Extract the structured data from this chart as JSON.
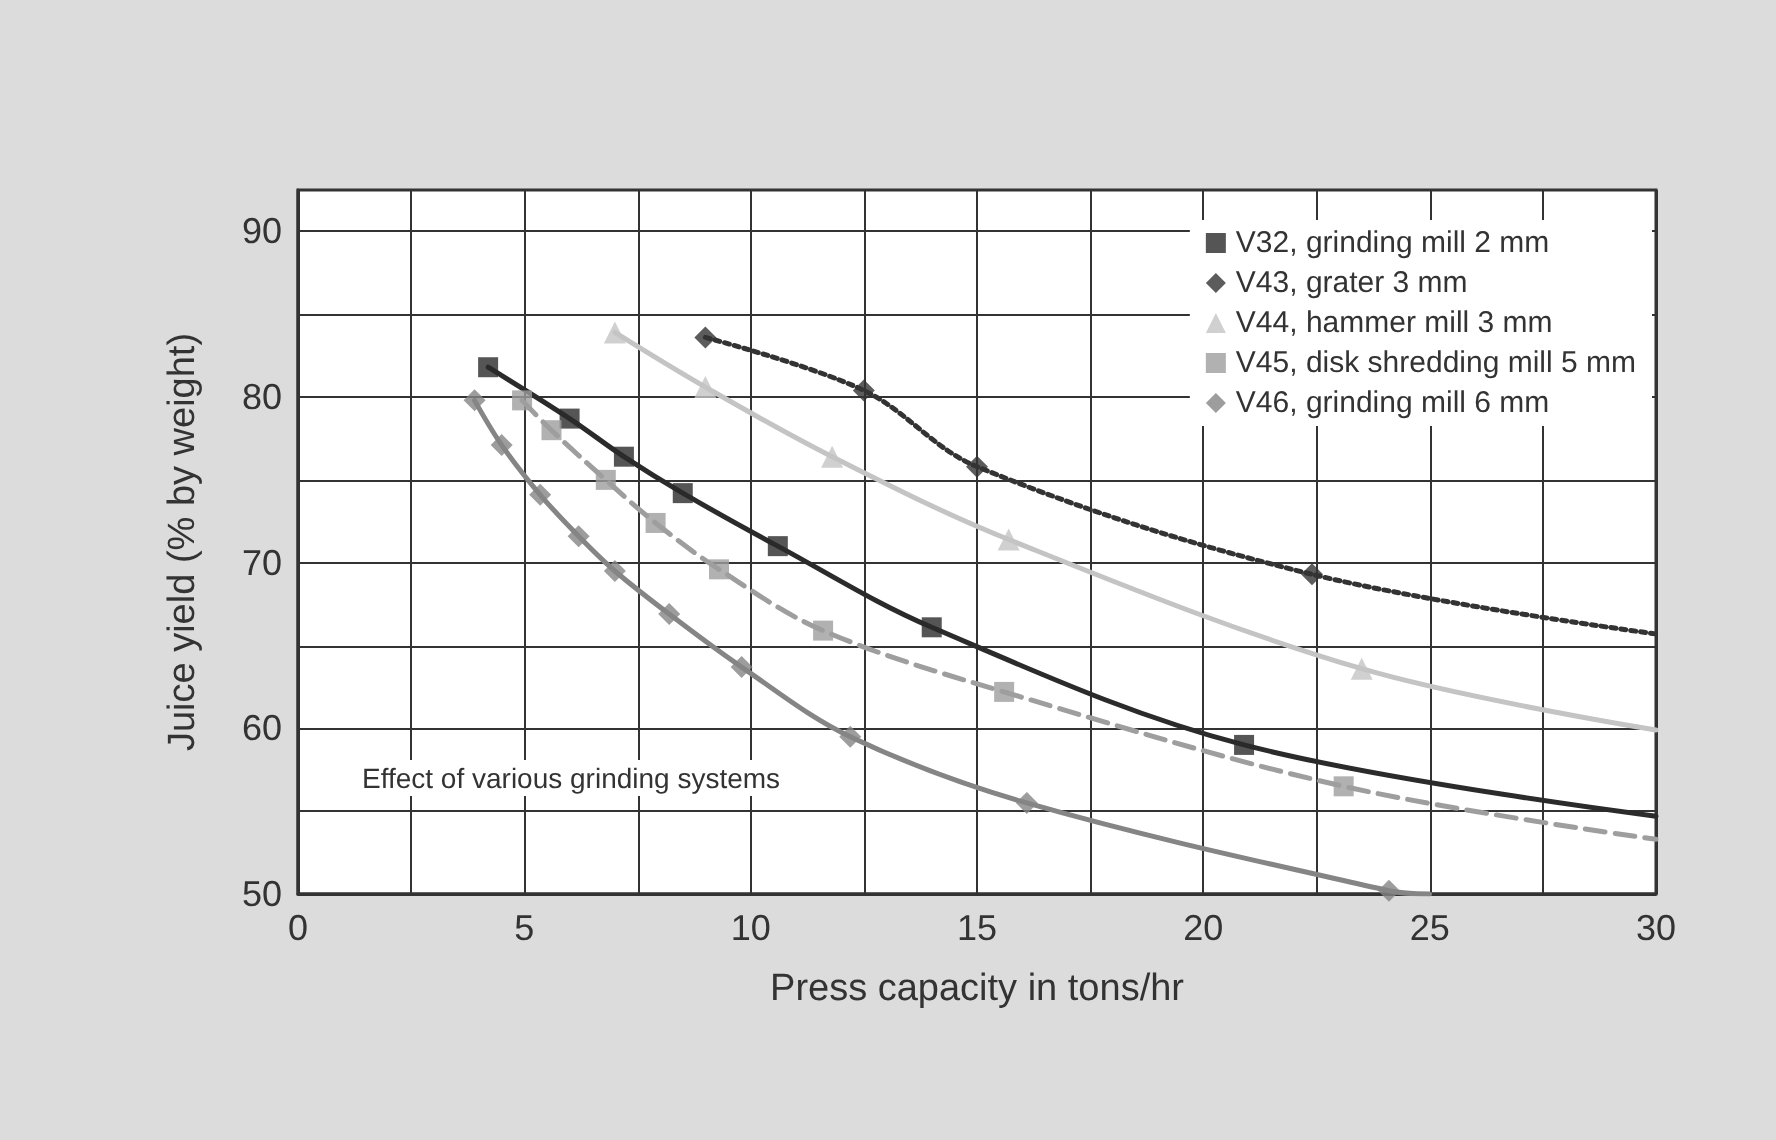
{
  "chart_data": {
    "type": "line",
    "xlabel": "Press capacity in tons/hr",
    "ylabel": "Juice yield (% by weight)",
    "xlim": [
      0,
      30
    ],
    "ylim": [
      50,
      92.5
    ],
    "xticks": [
      0,
      {
        "value": 2.5,
        "label": null
      },
      5,
      {
        "value": 7.5,
        "label": null
      },
      10,
      {
        "value": 12.5,
        "label": null
      },
      15,
      {
        "value": 17.5,
        "label": null
      },
      20,
      {
        "value": 22.5,
        "label": null
      },
      25,
      {
        "value": 27.5,
        "label": null
      },
      30
    ],
    "yticks": [
      50,
      {
        "value": 55,
        "label": null
      },
      60,
      {
        "value": 65,
        "label": null
      },
      70,
      {
        "value": 75,
        "label": null
      },
      80,
      {
        "value": 85,
        "label": null
      },
      90
    ],
    "grid": true,
    "legend": "top right",
    "annotations": [
      "Effect of various grinding systems"
    ],
    "series": [
      {
        "color": "#2b2b2b",
        "line_style": "solid",
        "marker": "none",
        "x": [
          4.2,
          6.0,
          7.2,
          8.5,
          10.6,
          14.0,
          20.9,
          30
        ],
        "values": [
          81.8,
          78.7,
          76.4,
          74.2,
          71.0,
          66.1,
          59.0,
          54.7
        ]
      },
      {
        "color": "#333333",
        "line_style": "dotted",
        "marker": "none",
        "x": [
          9.0,
          12.5,
          15.0,
          22.4,
          30
        ],
        "values": [
          83.6,
          80.4,
          75.8,
          69.3,
          65.7
        ]
      },
      {
        "color": "#c4c4c4",
        "line_style": "solid",
        "marker": "none",
        "x": [
          7.0,
          9.0,
          11.8,
          15.7,
          23.5,
          30
        ],
        "values": [
          83.9,
          80.6,
          76.4,
          71.4,
          63.6,
          59.9
        ]
      },
      {
        "color": "#9e9e9e",
        "line_style": "dashed",
        "marker": "none",
        "x": [
          4.95,
          5.6,
          6.8,
          7.9,
          9.3,
          11.6,
          15.6,
          23.1,
          30
        ],
        "values": [
          79.8,
          78.0,
          75.0,
          72.4,
          69.6,
          65.9,
          62.2,
          56.5,
          53.3
        ]
      },
      {
        "color": "#858585",
        "line_style": "solid",
        "marker": "none",
        "x": [
          3.9,
          4.5,
          5.35,
          6.2,
          7.0,
          8.2,
          9.8,
          12.2,
          16.1,
          24.1,
          25
        ],
        "values": [
          79.8,
          77.1,
          74.1,
          71.6,
          69.5,
          66.9,
          63.7,
          59.5,
          55.5,
          50.2,
          50.0
        ]
      },
      {
        "type": "scatter",
        "name": "V32, grinding mill 2 mm",
        "color": "#2b2b2b",
        "marker": "square",
        "x": [
          4.2,
          6.0,
          7.2,
          8.5,
          10.6,
          14.0,
          20.9
        ],
        "values": [
          81.8,
          78.7,
          76.4,
          74.2,
          71.0,
          66.1,
          59.0
        ]
      },
      {
        "type": "scatter",
        "name": "V43, grater 3 mm",
        "color": "#333333",
        "marker": "diamond",
        "x": [
          9.0,
          12.5,
          15.0,
          22.4
        ],
        "values": [
          83.6,
          80.4,
          75.8,
          69.3
        ]
      },
      {
        "type": "scatter",
        "name": "V44, hammer mill 3 mm",
        "color": "#c4c4c4",
        "marker": "triangle",
        "x": [
          7.0,
          9.0,
          11.8,
          15.7,
          23.5
        ],
        "values": [
          83.9,
          80.6,
          76.4,
          71.4,
          63.6
        ]
      },
      {
        "type": "scatter",
        "name": "V45, disk shredding mill 5 mm",
        "color": "#9e9e9e",
        "marker": "square",
        "x": [
          4.95,
          5.6,
          6.8,
          7.9,
          9.3,
          11.6,
          15.6,
          23.1
        ],
        "values": [
          79.8,
          78.0,
          75.0,
          72.4,
          69.6,
          65.9,
          62.2,
          56.5
        ]
      },
      {
        "type": "scatter",
        "name": "V46, grinding mill 6 mm",
        "color": "#858585",
        "marker": "diamond",
        "x": [
          3.9,
          4.5,
          5.35,
          6.2,
          7.0,
          8.2,
          9.8,
          12.2,
          16.1,
          24.1
        ],
        "values": [
          79.8,
          77.1,
          74.1,
          71.6,
          69.5,
          66.9,
          63.7,
          59.5,
          55.5,
          50.2
        ]
      }
    ]
  }
}
